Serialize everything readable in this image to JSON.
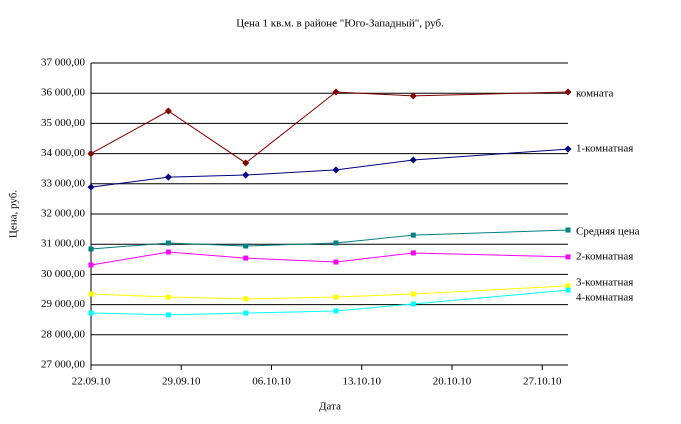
{
  "chart_data": {
    "type": "line",
    "title": "Цена 1 кв.м. в районе \"Юго-Западный\", руб.",
    "xlabel": "Дата",
    "ylabel": "Цена, руб.",
    "x": [
      "22.09.10",
      "28.09.10",
      "04.10.10",
      "11.10.10",
      "17.10.10",
      "29.10.10"
    ],
    "xlim": [
      "22.09.10",
      "29.10.10"
    ],
    "xticks": [
      "22.09.10",
      "29.09.10",
      "06.10.10",
      "13.10.10",
      "20.10.10",
      "27.10.10"
    ],
    "ylim": [
      27000,
      37000
    ],
    "yticks": [
      {
        "value": 27000,
        "label": "27 000,00"
      },
      {
        "value": 28000,
        "label": "28 000,00"
      },
      {
        "value": 29000,
        "label": "29 000,00"
      },
      {
        "value": 30000,
        "label": "30 000,00"
      },
      {
        "value": 31000,
        "label": "31 000,00"
      },
      {
        "value": 32000,
        "label": "32 000,00"
      },
      {
        "value": 33000,
        "label": "33 000,00"
      },
      {
        "value": 34000,
        "label": "34 000,00"
      },
      {
        "value": 35000,
        "label": "35 000,00"
      },
      {
        "value": 36000,
        "label": "36 000,00"
      },
      {
        "value": 37000,
        "label": "37 000,00"
      }
    ],
    "grid": true,
    "series": [
      {
        "name": "комната",
        "color": "#800000",
        "values": [
          34000,
          35410,
          33690,
          36040,
          35910,
          36040
        ]
      },
      {
        "name": "1-комнатная",
        "color": "#000080",
        "values": [
          32890,
          33220,
          33290,
          33460,
          33790,
          34150
        ]
      },
      {
        "name": "Средняя цена",
        "color": "#008080",
        "values": [
          30840,
          31040,
          30940,
          31040,
          31300,
          31470
        ]
      },
      {
        "name": "2-комнатная",
        "color": "#ff00ff",
        "values": [
          30310,
          30740,
          30540,
          30410,
          30710,
          30580
        ]
      },
      {
        "name": "3-комнатная",
        "color": "#ffff00",
        "values": [
          29350,
          29250,
          29190,
          29250,
          29350,
          29620
        ]
      },
      {
        "name": "4-комнатная",
        "color": "#00ffff",
        "values": [
          28720,
          28660,
          28720,
          28790,
          29020,
          29480
        ]
      }
    ]
  }
}
